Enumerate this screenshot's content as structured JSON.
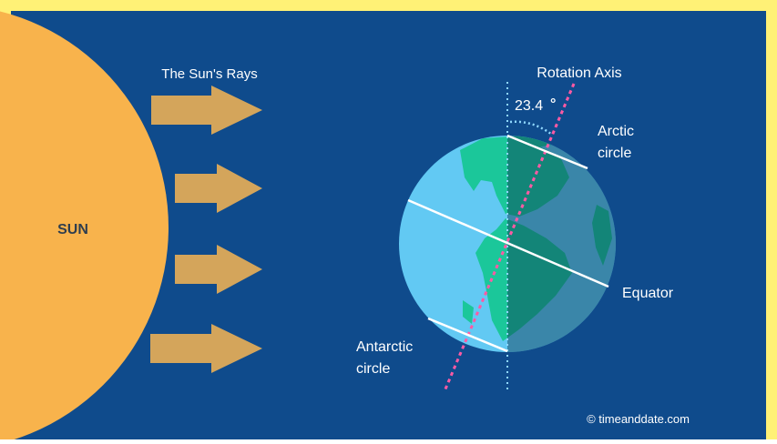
{
  "labels": {
    "sun": "SUN",
    "sun_rays": "The Sun's Rays",
    "rotation_axis": "Rotation Axis",
    "tilt_angle": "23.4",
    "degree_symbol": "°",
    "arctic_line1": "Arctic",
    "arctic_line2": "circle",
    "equator": "Equator",
    "antarctic_line1": "Antarctic",
    "antarctic_line2": "circle",
    "credit": "© timeanddate.com"
  },
  "colors": {
    "background": "#0f4b8c",
    "border_yellow": "#fff176",
    "sun": "#f8b34c",
    "arrow": "#d4a55b",
    "ocean_day": "#62c9f3",
    "ocean_night": "#1f6a8c",
    "land_day": "#1bc79a",
    "land_night": "#17876c",
    "axis_tilted": "#ff5aa4",
    "axis_vertical": "#8fd7ff",
    "circle_lines": "#ffffff"
  }
}
